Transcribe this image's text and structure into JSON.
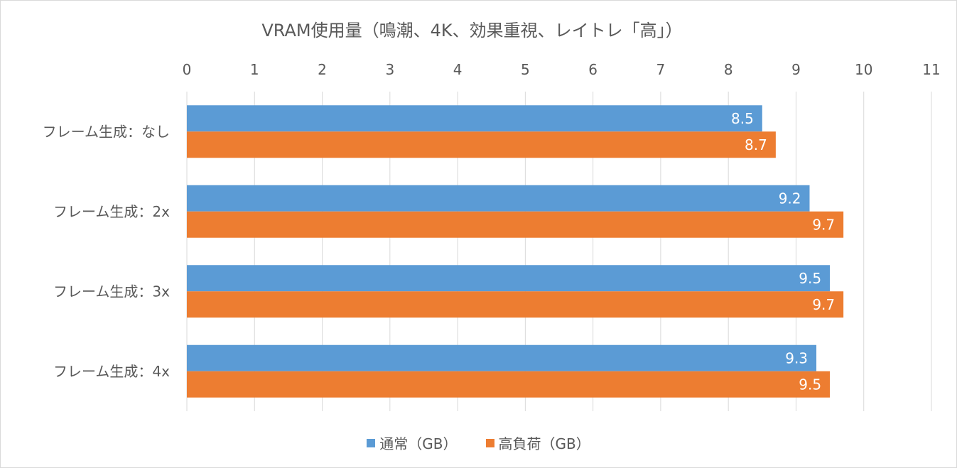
{
  "chart_data": {
    "type": "bar",
    "orientation": "horizontal",
    "title": "VRAM使用量（鳴潮、4K、効果重視、レイトレ「高」）",
    "categories": [
      "フレーム生成：なし",
      "フレーム生成：2x",
      "フレーム生成：3x",
      "フレーム生成：4x"
    ],
    "series": [
      {
        "name": "通常（GB）",
        "color": "#5B9BD5",
        "values": [
          8.5,
          9.2,
          9.5,
          9.3
        ]
      },
      {
        "name": "高負荷（GB）",
        "color": "#ED7D31",
        "values": [
          8.7,
          9.7,
          9.7,
          9.5
        ]
      }
    ],
    "xlim": [
      0,
      11
    ],
    "xticks": [
      0,
      1,
      2,
      3,
      4,
      5,
      6,
      7,
      8,
      9,
      10,
      11
    ],
    "x_axis_position": "top",
    "grid": true,
    "data_labels": true,
    "legend_position": "bottom"
  }
}
